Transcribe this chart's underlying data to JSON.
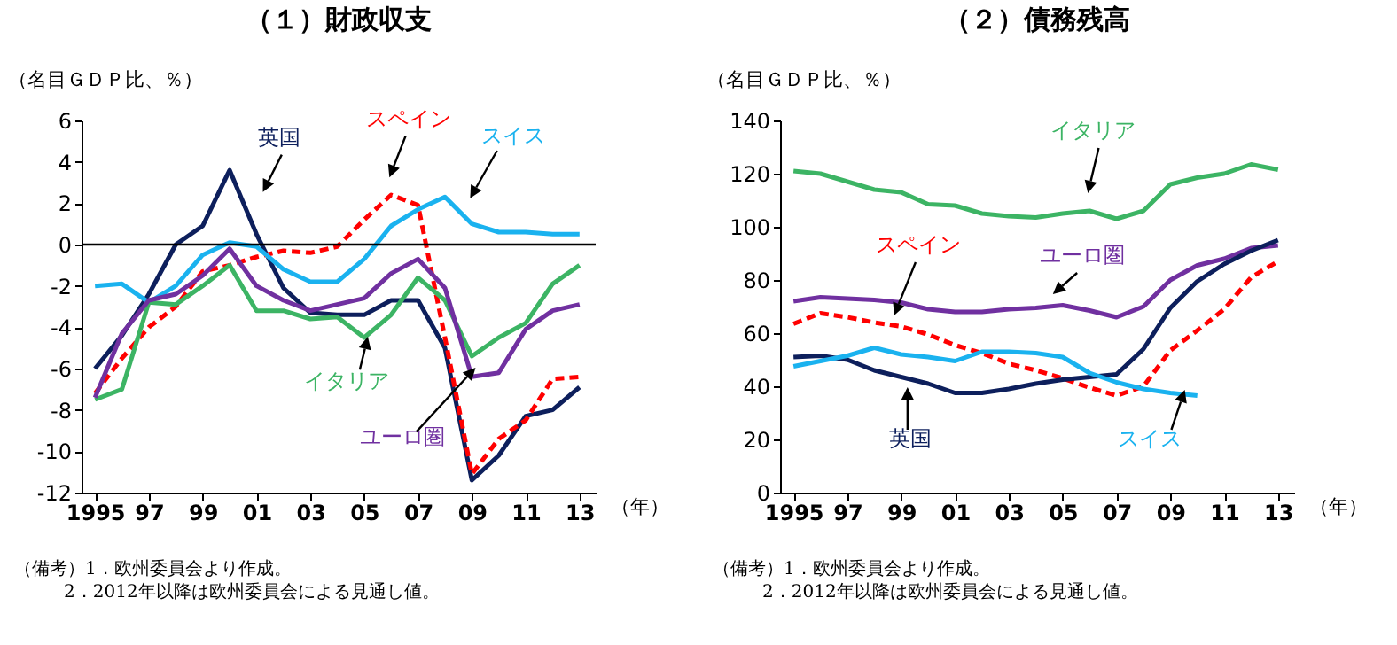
{
  "chart_data": [
    {
      "type": "line",
      "title": "（１）財政収支",
      "ylabel": "（名目ＧＤＰ比、％）",
      "xlabel": "（年）",
      "x": [
        1995,
        1996,
        1997,
        1998,
        1999,
        2000,
        2001,
        2002,
        2003,
        2004,
        2005,
        2006,
        2007,
        2008,
        2009,
        2010,
        2011,
        2012,
        2013
      ],
      "xlim": [
        1994.5,
        2013.6
      ],
      "xticks": [
        {
          "value": 1995,
          "label": "1995"
        },
        {
          "value": 1997,
          "label": "97"
        },
        {
          "value": 1999,
          "label": "99"
        },
        {
          "value": 2001,
          "label": "01"
        },
        {
          "value": 2003,
          "label": "03"
        },
        {
          "value": 2005,
          "label": "05"
        },
        {
          "value": 2007,
          "label": "07"
        },
        {
          "value": 2009,
          "label": "09"
        },
        {
          "value": 2011,
          "label": "11"
        },
        {
          "value": 2013,
          "label": "13"
        }
      ],
      "ylim": [
        -12,
        6
      ],
      "yticks": [
        -12,
        -10,
        -8,
        -6,
        -4,
        -2,
        0,
        2,
        4,
        6
      ],
      "ref_lines": [
        {
          "axis": "y",
          "value": 0,
          "color": "#000000"
        }
      ],
      "series": [
        {
          "name": "英国",
          "color": "#0d1f5c",
          "values": [
            -6.0,
            -4.4,
            -2.4,
            0.0,
            0.9,
            3.6,
            0.5,
            -2.1,
            -3.3,
            -3.4,
            -3.4,
            -2.7,
            -2.7,
            -5.0,
            -11.4,
            -10.2,
            -8.3,
            -8.0,
            -6.9
          ]
        },
        {
          "name": "スペイン",
          "color": "#ff0000",
          "line_style": "dashed",
          "values": [
            -7.2,
            -5.5,
            -4.0,
            -3.0,
            -1.3,
            -1.0,
            -0.6,
            -0.3,
            -0.4,
            -0.1,
            1.2,
            2.4,
            1.9,
            -4.5,
            -11.1,
            -9.4,
            -8.5,
            -6.5,
            -6.4
          ]
        },
        {
          "name": "スイス",
          "color": "#1ab2ef",
          "values": [
            -2.0,
            -1.9,
            -2.8,
            -2.0,
            -0.5,
            0.1,
            -0.1,
            -1.2,
            -1.8,
            -1.8,
            -0.7,
            0.9,
            1.7,
            2.3,
            1.0,
            0.6,
            0.6,
            0.5,
            0.5
          ]
        },
        {
          "name": "イタリア",
          "color": "#3cb464",
          "values": [
            -7.5,
            -7.0,
            -2.8,
            -2.9,
            -2.0,
            -1.0,
            -3.2,
            -3.2,
            -3.6,
            -3.5,
            -4.5,
            -3.4,
            -1.6,
            -2.7,
            -5.4,
            -4.5,
            -3.8,
            -1.9,
            -1.0
          ]
        },
        {
          "name": "ユーロ圏",
          "color": "#7030a0",
          "values": [
            -7.4,
            -4.3,
            -2.7,
            -2.4,
            -1.5,
            -0.2,
            -2.0,
            -2.7,
            -3.2,
            -2.9,
            -2.6,
            -1.4,
            -0.7,
            -2.1,
            -6.4,
            -6.2,
            -4.1,
            -3.2,
            -2.9
          ]
        }
      ],
      "annotations": [
        "（備考）1．欧州委員会より作成。",
        "2．2012年以降は欧州委員会による見通し値。"
      ]
    },
    {
      "type": "line",
      "title": "（２）債務残高",
      "ylabel": "（名目ＧＤＰ比、％）",
      "xlabel": "（年）",
      "x": [
        1995,
        1996,
        1997,
        1998,
        1999,
        2000,
        2001,
        2002,
        2003,
        2004,
        2005,
        2006,
        2007,
        2008,
        2009,
        2010,
        2011,
        2012,
        2013
      ],
      "xlim": [
        1994.5,
        2013.6
      ],
      "xticks": [
        {
          "value": 1995,
          "label": "1995"
        },
        {
          "value": 1997,
          "label": "97"
        },
        {
          "value": 1999,
          "label": "99"
        },
        {
          "value": 2001,
          "label": "01"
        },
        {
          "value": 2003,
          "label": "03"
        },
        {
          "value": 2005,
          "label": "05"
        },
        {
          "value": 2007,
          "label": "07"
        },
        {
          "value": 2009,
          "label": "09"
        },
        {
          "value": 2011,
          "label": "11"
        },
        {
          "value": 2013,
          "label": "13"
        }
      ],
      "ylim": [
        0,
        140
      ],
      "yticks": [
        0,
        20,
        40,
        60,
        80,
        100,
        120,
        140
      ],
      "series": [
        {
          "name": "イタリア",
          "color": "#3cb464",
          "values": [
            121,
            120,
            117,
            114,
            113,
            108.5,
            108,
            105,
            104,
            103.5,
            105,
            106,
            103,
            106,
            116,
            118.5,
            120,
            123.5,
            121.5
          ]
        },
        {
          "name": "ユーロ圏",
          "color": "#7030a0",
          "values": [
            72,
            73.5,
            73,
            72.5,
            71.5,
            69,
            68,
            68,
            69,
            69.5,
            70.5,
            68.5,
            66,
            70,
            80,
            85.5,
            88,
            92,
            93
          ]
        },
        {
          "name": "スペイン",
          "color": "#ff0000",
          "line_style": "dashed",
          "values": [
            63.5,
            67.5,
            66,
            64,
            62.5,
            59.5,
            55.5,
            52.5,
            48.5,
            46,
            43,
            39.5,
            36.5,
            40,
            53.5,
            61,
            69,
            81,
            87
          ]
        },
        {
          "name": "英国",
          "color": "#0d1f5c",
          "values": [
            51,
            51.5,
            50,
            46,
            43.5,
            41,
            37.5,
            37.5,
            39,
            41,
            42.5,
            43.5,
            44.5,
            54,
            69.5,
            79.5,
            86,
            91,
            95
          ]
        },
        {
          "name": "スイス",
          "color": "#1ab2ef",
          "values": [
            47.5,
            49.5,
            51.5,
            54.5,
            52,
            51,
            49.5,
            53,
            53,
            52.5,
            51,
            45,
            41.5,
            39,
            37.5,
            36.5,
            null,
            null,
            null
          ]
        }
      ],
      "annotations": [
        "（備考）1．欧州委員会より作成。",
        "2．2012年以降は欧州委員会による見通し値。"
      ]
    }
  ]
}
